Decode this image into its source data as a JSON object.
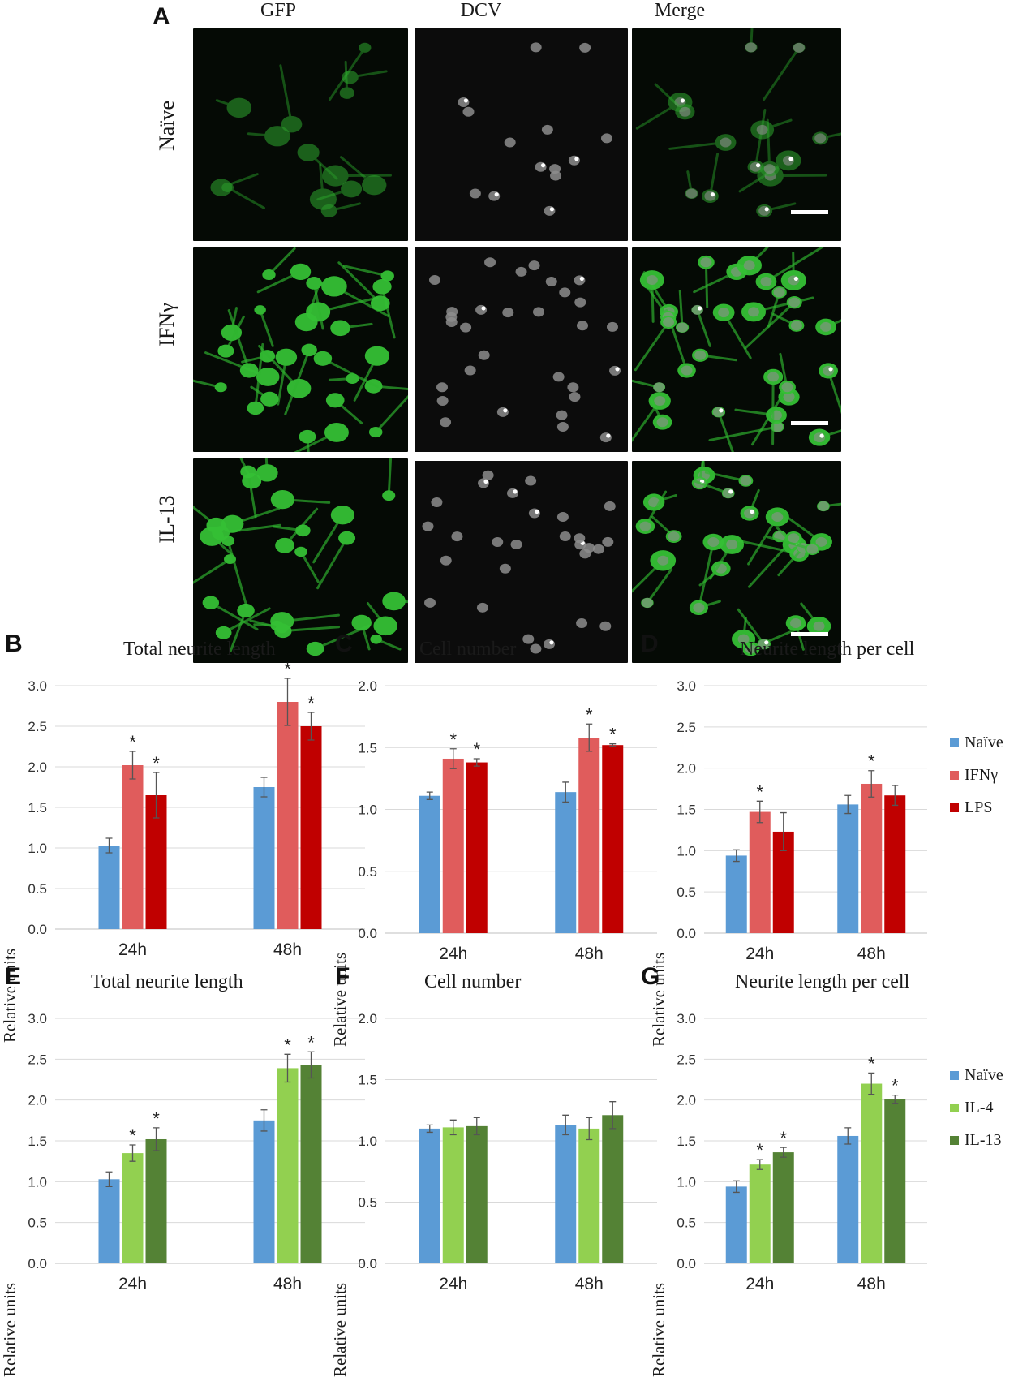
{
  "panelA": {
    "letter": "A",
    "columns": [
      "GFP",
      "DCV",
      "Merge"
    ],
    "rows": [
      "Naïve",
      "IFNγ",
      "IL-13"
    ]
  },
  "chart_data": [
    {
      "panel": "B",
      "type": "bar",
      "title": "Total neurite length",
      "ylabel": "Relative units",
      "categories": [
        "24h",
        "48h"
      ],
      "ylim": [
        0,
        3.0
      ],
      "yticks": [
        0.0,
        0.5,
        1.0,
        1.5,
        2.0,
        2.5,
        3.0
      ],
      "series": [
        {
          "name": "Naïve",
          "color": "#5b9bd5",
          "values": [
            1.03,
            1.75
          ],
          "errors": [
            0.09,
            0.12
          ],
          "sig": [
            false,
            false
          ]
        },
        {
          "name": "IFNγ",
          "color": "#e05c5c",
          "values": [
            2.02,
            2.8
          ],
          "errors": [
            0.17,
            0.29
          ],
          "sig": [
            true,
            true
          ]
        },
        {
          "name": "LPS",
          "color": "#c00000",
          "values": [
            1.65,
            2.5
          ],
          "errors": [
            0.28,
            0.17
          ],
          "sig": [
            true,
            true
          ]
        }
      ]
    },
    {
      "panel": "C",
      "type": "bar",
      "title": "Cell number",
      "ylabel": "Relative units",
      "categories": [
        "24h",
        "48h"
      ],
      "ylim": [
        0,
        2.0
      ],
      "yticks": [
        0.0,
        0.5,
        1.0,
        1.5,
        2.0
      ],
      "series": [
        {
          "name": "Naïve",
          "color": "#5b9bd5",
          "values": [
            1.11,
            1.14
          ],
          "errors": [
            0.03,
            0.08
          ],
          "sig": [
            false,
            false
          ]
        },
        {
          "name": "IFNγ",
          "color": "#e05c5c",
          "values": [
            1.41,
            1.58
          ],
          "errors": [
            0.08,
            0.11
          ],
          "sig": [
            true,
            true
          ]
        },
        {
          "name": "LPS",
          "color": "#c00000",
          "values": [
            1.38,
            1.52
          ],
          "errors": [
            0.03,
            0.01
          ],
          "sig": [
            true,
            true
          ]
        }
      ]
    },
    {
      "panel": "D",
      "type": "bar",
      "title": "Neurite length per cell",
      "ylabel": "Relative units",
      "categories": [
        "24h",
        "48h"
      ],
      "ylim": [
        0,
        3.0
      ],
      "yticks": [
        0.0,
        0.5,
        1.0,
        1.5,
        2.0,
        2.5,
        3.0
      ],
      "legend": [
        "Naïve",
        "IFNγ",
        "LPS"
      ],
      "series": [
        {
          "name": "Naïve",
          "color": "#5b9bd5",
          "values": [
            0.94,
            1.56
          ],
          "errors": [
            0.07,
            0.11
          ],
          "sig": [
            false,
            false
          ]
        },
        {
          "name": "IFNγ",
          "color": "#e05c5c",
          "values": [
            1.47,
            1.81
          ],
          "errors": [
            0.13,
            0.16
          ],
          "sig": [
            true,
            true
          ]
        },
        {
          "name": "LPS",
          "color": "#c00000",
          "values": [
            1.23,
            1.67
          ],
          "errors": [
            0.23,
            0.12
          ],
          "sig": [
            false,
            false
          ]
        }
      ]
    },
    {
      "panel": "E",
      "type": "bar",
      "title": "Total neurite length",
      "ylabel": "Relative units",
      "categories": [
        "24h",
        "48h"
      ],
      "ylim": [
        0,
        3.0
      ],
      "yticks": [
        0.0,
        0.5,
        1.0,
        1.5,
        2.0,
        2.5,
        3.0
      ],
      "series": [
        {
          "name": "Naïve",
          "color": "#5b9bd5",
          "values": [
            1.03,
            1.75
          ],
          "errors": [
            0.09,
            0.13
          ],
          "sig": [
            false,
            false
          ]
        },
        {
          "name": "IL-4",
          "color": "#92d050",
          "values": [
            1.35,
            2.39
          ],
          "errors": [
            0.1,
            0.17
          ],
          "sig": [
            true,
            true
          ]
        },
        {
          "name": "IL-13",
          "color": "#548235",
          "values": [
            1.52,
            2.43
          ],
          "errors": [
            0.14,
            0.16
          ],
          "sig": [
            true,
            true
          ]
        }
      ]
    },
    {
      "panel": "F",
      "type": "bar",
      "title": "Cell number",
      "ylabel": "Relative units",
      "categories": [
        "24h",
        "48h"
      ],
      "ylim": [
        0,
        2.0
      ],
      "yticks": [
        0.0,
        0.5,
        1.0,
        1.5,
        2.0
      ],
      "series": [
        {
          "name": "Naïve",
          "color": "#5b9bd5",
          "values": [
            1.1,
            1.13
          ],
          "errors": [
            0.03,
            0.08
          ],
          "sig": [
            false,
            false
          ]
        },
        {
          "name": "IL-4",
          "color": "#92d050",
          "values": [
            1.11,
            1.1
          ],
          "errors": [
            0.06,
            0.09
          ],
          "sig": [
            false,
            false
          ]
        },
        {
          "name": "IL-13",
          "color": "#548235",
          "values": [
            1.12,
            1.21
          ],
          "errors": [
            0.07,
            0.11
          ],
          "sig": [
            false,
            false
          ]
        }
      ]
    },
    {
      "panel": "G",
      "type": "bar",
      "title": "Neurite length per cell",
      "ylabel": "Relative units",
      "categories": [
        "24h",
        "48h"
      ],
      "ylim": [
        0,
        3.0
      ],
      "yticks": [
        0.0,
        0.5,
        1.0,
        1.5,
        2.0,
        2.5,
        3.0
      ],
      "legend": [
        "Naïve",
        "IL-4",
        "IL-13"
      ],
      "series": [
        {
          "name": "Naïve",
          "color": "#5b9bd5",
          "values": [
            0.94,
            1.56
          ],
          "errors": [
            0.07,
            0.1
          ],
          "sig": [
            false,
            false
          ]
        },
        {
          "name": "IL-4",
          "color": "#92d050",
          "values": [
            1.21,
            2.2
          ],
          "errors": [
            0.06,
            0.13
          ],
          "sig": [
            true,
            true
          ]
        },
        {
          "name": "IL-13",
          "color": "#548235",
          "values": [
            1.36,
            2.01
          ],
          "errors": [
            0.06,
            0.05
          ],
          "sig": [
            true,
            true
          ]
        }
      ]
    }
  ]
}
